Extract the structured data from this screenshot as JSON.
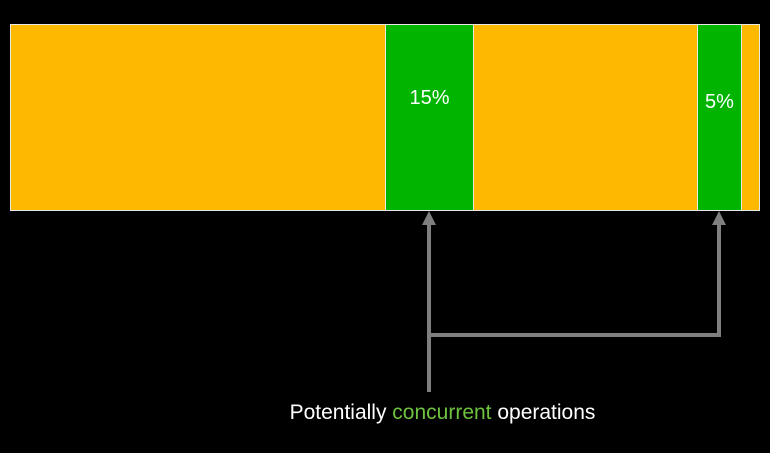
{
  "colors": {
    "background": "#000000",
    "sequential": "#fdb900",
    "concurrent": "#00b400",
    "accent_text": "#6fc23f",
    "arrow": "#7f7f7f",
    "text": "#ffffff"
  },
  "bar": {
    "segments": [
      {
        "kind": "sequential",
        "label": ""
      },
      {
        "kind": "concurrent",
        "label": "15%"
      },
      {
        "kind": "sequential",
        "label": ""
      },
      {
        "kind": "concurrent",
        "label": "5%"
      },
      {
        "kind": "sequential",
        "label": ""
      }
    ]
  },
  "caption": {
    "prefix": "Potentially ",
    "highlight": "concurrent",
    "suffix": " operations"
  }
}
